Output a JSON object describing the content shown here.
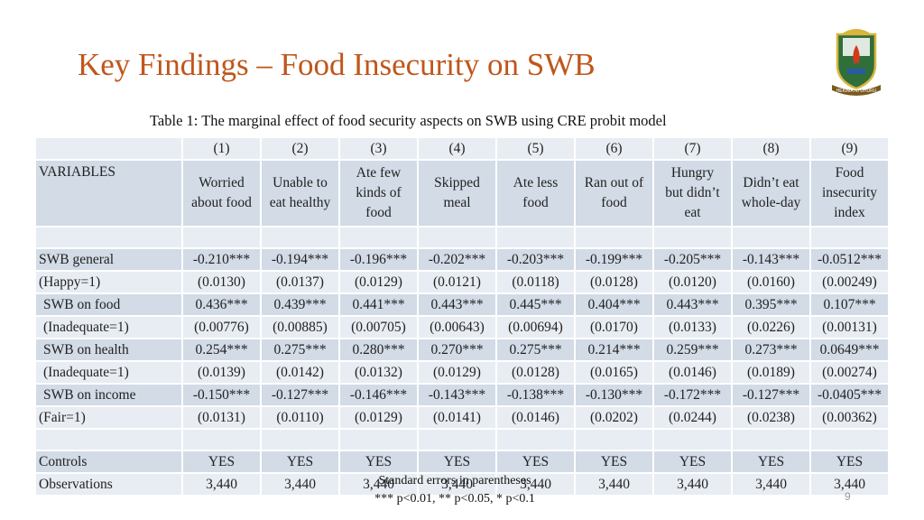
{
  "slide": {
    "title": "Key Findings – Food Insecurity on SWB",
    "page_number": "9"
  },
  "table": {
    "caption": "Table 1: The marginal effect of food security aspects on SWB using CRE probit model",
    "variables_label": "VARIABLES",
    "col_numbers": [
      "(1)",
      "(2)",
      "(3)",
      "(4)",
      "(5)",
      "(6)",
      "(7)",
      "(8)",
      "(9)"
    ],
    "col_headers": [
      [
        "Worried",
        "about food"
      ],
      [
        "Unable to",
        "eat healthy"
      ],
      [
        "Ate few",
        "kinds of",
        "food"
      ],
      [
        "Skipped",
        "meal"
      ],
      [
        "Ate less",
        "food"
      ],
      [
        "Ran out of",
        "food"
      ],
      [
        "Hungry",
        "but didn’t",
        "eat"
      ],
      [
        "Didn’t eat",
        "whole-day"
      ],
      [
        "Food",
        "insecurity",
        "index"
      ]
    ],
    "rows": [
      {
        "label": "SWB general",
        "values": [
          "-0.210***",
          "-0.194***",
          "-0.196***",
          "-0.202***",
          "-0.203***",
          "-0.199***",
          "-0.205***",
          "-0.143***",
          "-0.0512***"
        ]
      },
      {
        "label": "(Happy=1)",
        "values": [
          "(0.0130)",
          "(0.0137)",
          "(0.0129)",
          "(0.0121)",
          "(0.0118)",
          "(0.0128)",
          "(0.0120)",
          "(0.0160)",
          "(0.00249)"
        ]
      },
      {
        "label": "SWB on food",
        "values": [
          "0.436***",
          "0.439***",
          "0.441***",
          "0.443***",
          "0.445***",
          "0.404***",
          "0.443***",
          "0.395***",
          "0.107***"
        ]
      },
      {
        "label": "(Inadequate=1)",
        "values": [
          "(0.00776)",
          "(0.00885)",
          "(0.00705)",
          "(0.00643)",
          "(0.00694)",
          "(0.0170)",
          "(0.0133)",
          "(0.0226)",
          "(0.00131)"
        ]
      },
      {
        "label": "SWB on health",
        "values": [
          "0.254***",
          "0.275***",
          "0.280***",
          "0.270***",
          "0.275***",
          "0.214***",
          "0.259***",
          "0.273***",
          "0.0649***"
        ]
      },
      {
        "label": "(Inadequate=1)",
        "values": [
          "(0.0139)",
          "(0.0142)",
          "(0.0132)",
          "(0.0129)",
          "(0.0128)",
          "(0.0165)",
          "(0.0146)",
          "(0.0189)",
          "(0.00274)"
        ]
      },
      {
        "label": "SWB on income",
        "values": [
          "-0.150***",
          "-0.127***",
          "-0.146***",
          "-0.143***",
          "-0.138***",
          "-0.130***",
          "-0.172***",
          "-0.127***",
          "-0.0405***"
        ]
      },
      {
        "label": "(Fair=1)",
        "values": [
          "(0.0131)",
          "(0.0110)",
          "(0.0129)",
          "(0.0141)",
          "(0.0146)",
          "(0.0202)",
          "(0.0244)",
          "(0.0238)",
          "(0.00362)"
        ]
      }
    ],
    "bottom_rows": [
      {
        "label": "Controls",
        "values": [
          "YES",
          "YES",
          "YES",
          "YES",
          "YES",
          "YES",
          "YES",
          "YES",
          "YES"
        ]
      },
      {
        "label": "Observations",
        "values": [
          "3,440",
          "3,440",
          "3,440",
          "3,440",
          "3,440",
          "3,440",
          "3,440",
          "3,440",
          "3,440"
        ]
      }
    ],
    "notes": [
      "Standard errors in parentheses",
      "*** p<0.01, ** p<0.05, * p<0.1"
    ]
  },
  "logo": {
    "motto": "HEKIMA NI UHURU",
    "colors": {
      "shield": "#2f6f3a",
      "gold": "#d9b53c",
      "flame": "#d23a1c",
      "banner": "#7a5a1e"
    }
  },
  "colors": {
    "title": "#c0561b",
    "row_light": "#e8edf3",
    "row_dark": "#d2dbe6"
  }
}
